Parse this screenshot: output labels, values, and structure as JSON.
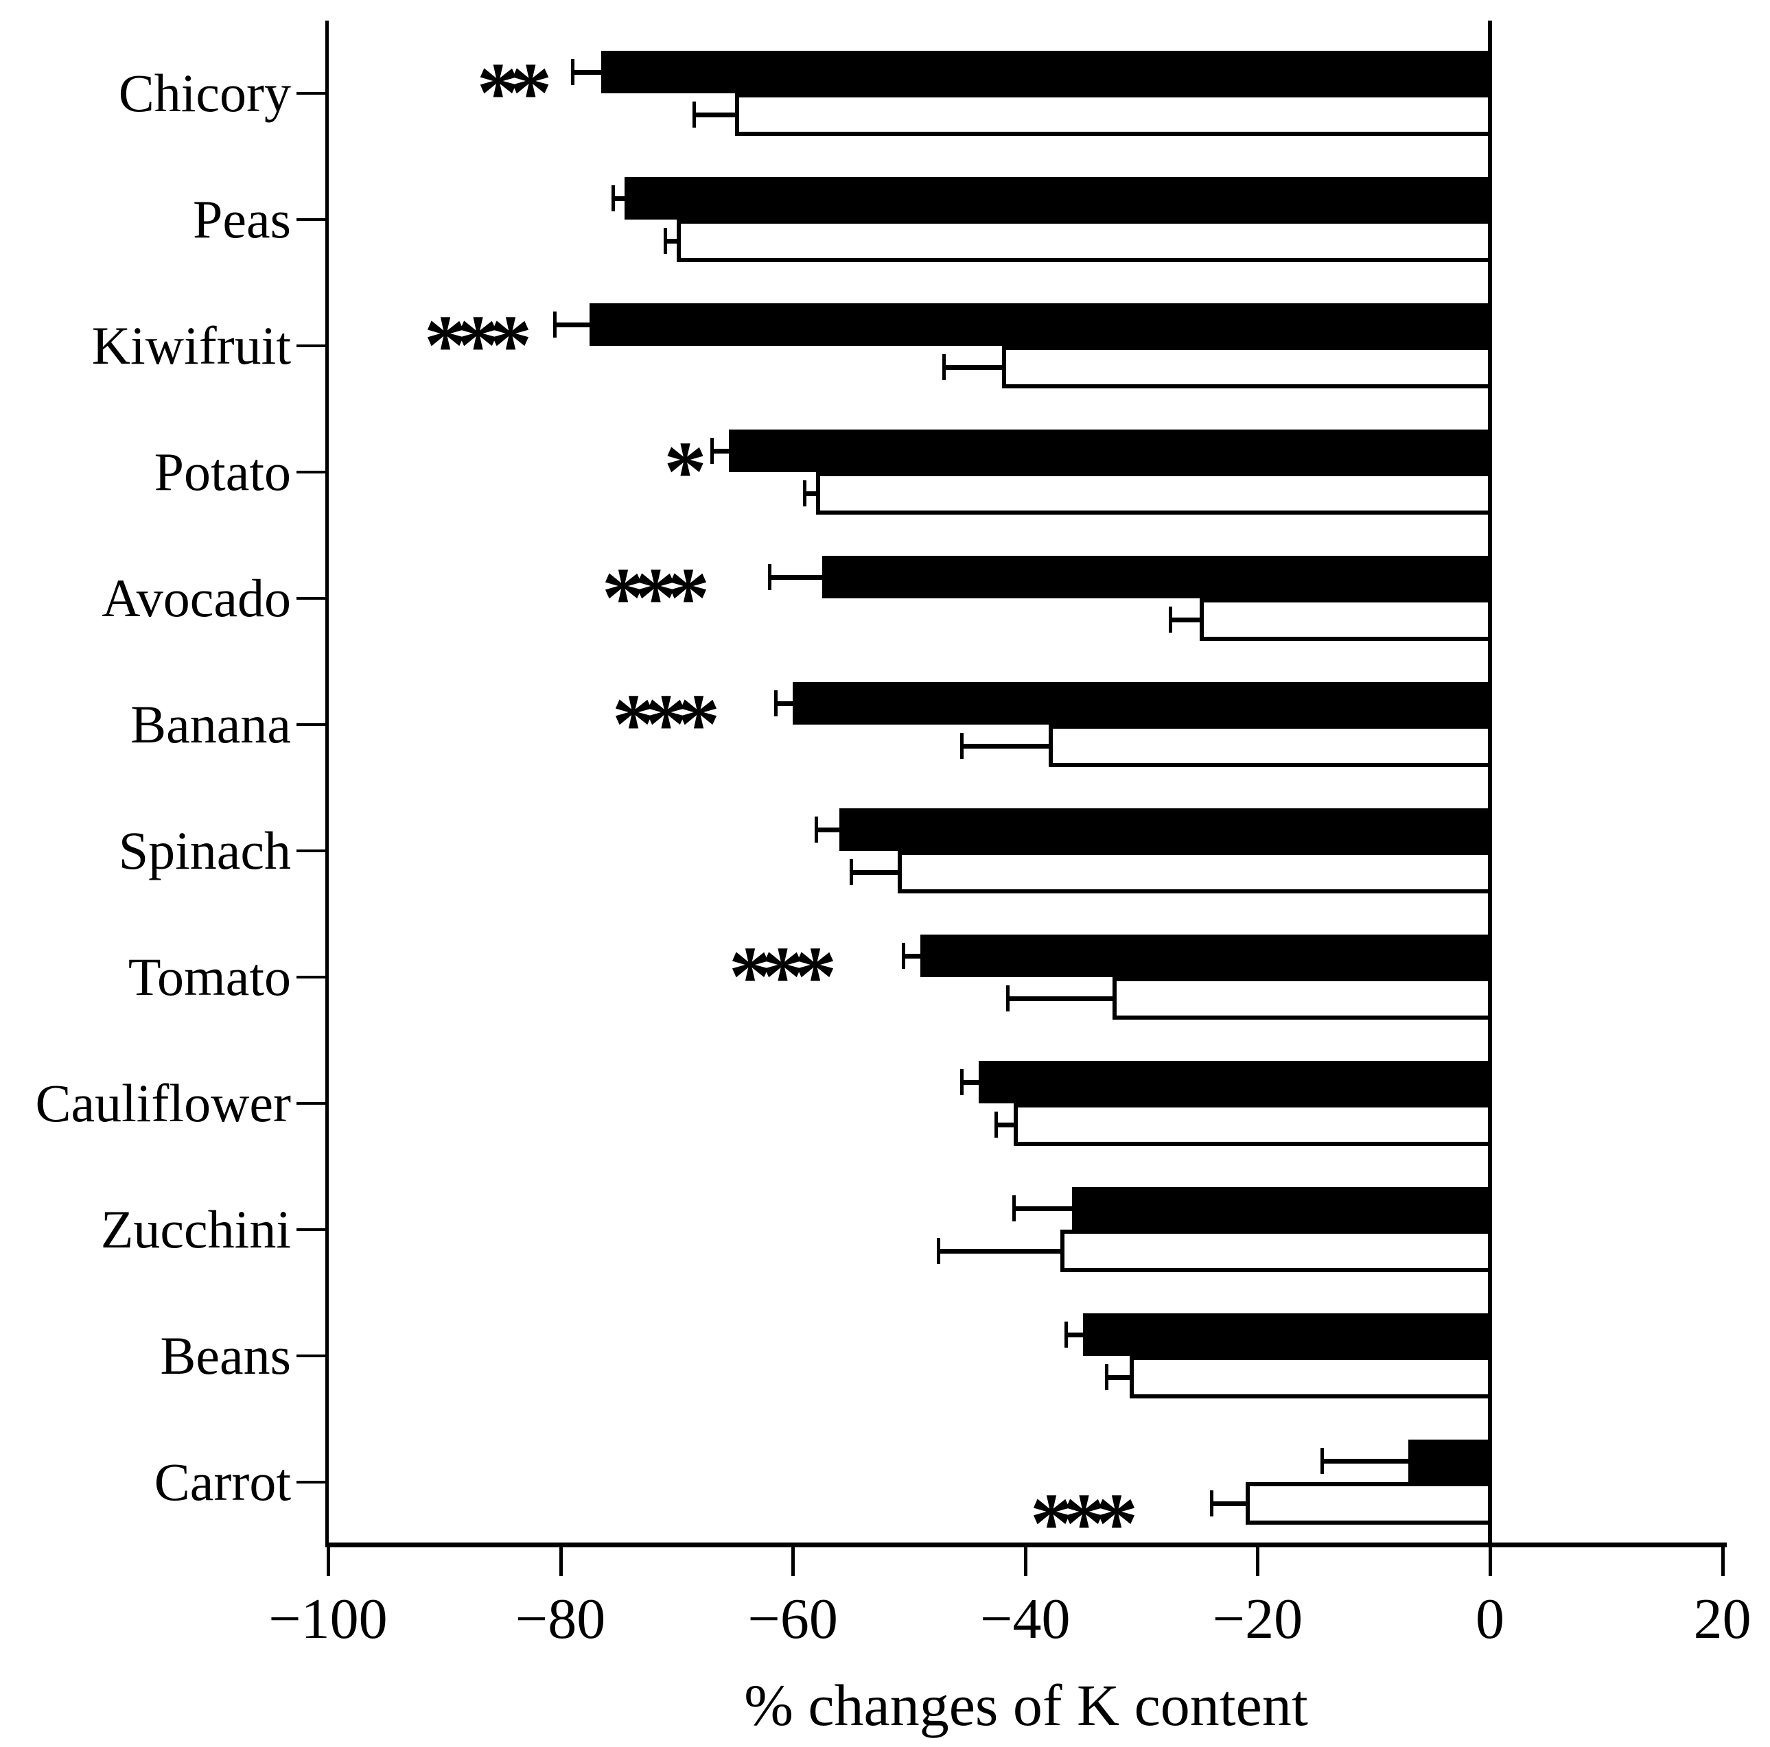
{
  "chart_data": {
    "type": "bar",
    "orientation": "horizontal",
    "title": "",
    "xlabel": "% changes of K content",
    "ylabel": "",
    "xlim": [
      -100,
      20
    ],
    "x_ticks": [
      -100,
      -80,
      -60,
      -40,
      -20,
      0,
      20
    ],
    "x_tick_labels": [
      "−100",
      "−80",
      "−60",
      "−40",
      "−20",
      "0",
      "20"
    ],
    "grid": false,
    "legend": "none",
    "background_color": "#ffffff",
    "axis_color": "#000000",
    "categories": [
      "Chicory",
      "Peas",
      "Kiwifruit",
      "Potato",
      "Avocado",
      "Banana",
      "Spinach",
      "Tomato",
      "Cauliflower",
      "Zucchini",
      "Beans",
      "Carrot"
    ],
    "series": [
      {
        "name": "filled-black-bar",
        "fill": "#000000",
        "values": [
          -76.5,
          -74.5,
          -77.5,
          -65.5,
          -57.5,
          -60,
          -56,
          -49,
          -44,
          -36,
          -35,
          -7
        ],
        "errors": [
          2.5,
          1,
          3,
          1.5,
          4.5,
          1.5,
          2,
          1.5,
          1.5,
          5,
          1.5,
          7.5
        ]
      },
      {
        "name": "open-white-bar",
        "fill": "#ffffff",
        "values": [
          -65,
          -70,
          -42,
          -58,
          -25,
          -38,
          -51,
          -32.5,
          -41,
          -37,
          -31,
          -21
        ],
        "errors": [
          3.5,
          1,
          5,
          1,
          2.5,
          7.5,
          4,
          9,
          1.5,
          10.5,
          2,
          3
        ]
      }
    ],
    "significance": [
      "**",
      "",
      "***",
      "*",
      "***",
      "***",
      "",
      "***",
      "",
      "",
      "",
      "***"
    ],
    "significance_position": [
      "black-bar",
      "",
      "black-bar",
      "black-bar",
      "black-bar",
      "black-bar",
      "",
      "black-bar",
      "",
      "",
      "",
      "white-bar"
    ]
  }
}
